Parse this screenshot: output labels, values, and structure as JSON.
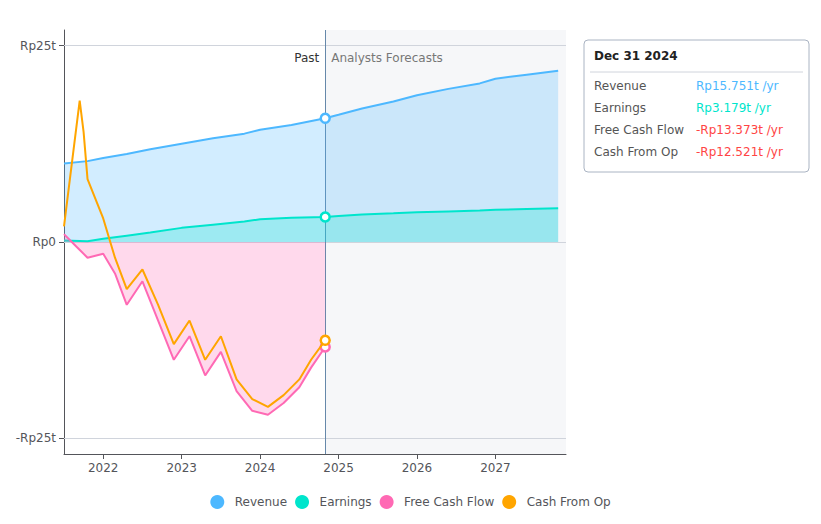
{
  "chart_data": {
    "type": "line",
    "xlim": [
      2021.5,
      2027.9
    ],
    "xticks": [
      2022,
      2023,
      2024,
      2025,
      2026,
      2027
    ],
    "ylim": [
      -27,
      27
    ],
    "yticks": [
      {
        "value": -25,
        "label": "-Rp25t"
      },
      {
        "value": 0,
        "label": "Rp0"
      },
      {
        "value": 25,
        "label": "Rp25t"
      }
    ],
    "grid": true,
    "legend": "bottom",
    "series": [
      {
        "name": "Revenue",
        "type": "area",
        "color": "#4db8ff",
        "x": [
          2021.5,
          2021.8,
          2022.0,
          2022.3,
          2022.6,
          2023.0,
          2023.4,
          2023.8,
          2024.0,
          2024.4,
          2024.83,
          2025.0,
          2025.3,
          2025.7,
          2026.0,
          2026.4,
          2026.8,
          2027.0,
          2027.4,
          2027.8
        ],
        "values": [
          10.0,
          10.3,
          10.7,
          11.2,
          11.8,
          12.5,
          13.2,
          13.8,
          14.3,
          14.9,
          15.751,
          16.2,
          17.0,
          17.9,
          18.7,
          19.5,
          20.2,
          20.8,
          21.3,
          21.8
        ]
      },
      {
        "name": "Earnings",
        "type": "area",
        "color": "#00e5cc",
        "x": [
          2021.5,
          2021.8,
          2022.0,
          2022.3,
          2022.6,
          2023.0,
          2023.4,
          2023.8,
          2024.0,
          2024.4,
          2024.83,
          2025.0,
          2025.3,
          2025.7,
          2026.0,
          2026.4,
          2026.8,
          2027.0,
          2027.4,
          2027.8
        ],
        "values": [
          0.2,
          0.1,
          0.4,
          0.8,
          1.2,
          1.8,
          2.2,
          2.6,
          2.9,
          3.1,
          3.179,
          3.3,
          3.5,
          3.65,
          3.8,
          3.9,
          4.0,
          4.1,
          4.2,
          4.3
        ]
      },
      {
        "name": "Free Cash Flow",
        "type": "area",
        "color": "#ff69b4",
        "x": [
          2021.5,
          2021.65,
          2021.8,
          2022.0,
          2022.15,
          2022.3,
          2022.5,
          2022.7,
          2022.9,
          2023.1,
          2023.3,
          2023.5,
          2023.7,
          2023.9,
          2024.1,
          2024.3,
          2024.5,
          2024.65,
          2024.83
        ],
        "values": [
          1.0,
          -0.5,
          -2.0,
          -1.5,
          -4.0,
          -8.0,
          -5.0,
          -10.0,
          -15.0,
          -12.0,
          -17.0,
          -14.0,
          -19.0,
          -21.5,
          -22.0,
          -20.5,
          -18.5,
          -16.0,
          -13.373
        ]
      },
      {
        "name": "Cash From Op",
        "type": "line",
        "color": "#ffa500",
        "x": [
          2021.5,
          2021.6,
          2021.7,
          2021.75,
          2021.8,
          2022.0,
          2022.15,
          2022.3,
          2022.5,
          2022.7,
          2022.9,
          2023.1,
          2023.3,
          2023.5,
          2023.7,
          2023.9,
          2024.1,
          2024.3,
          2024.5,
          2024.65,
          2024.83
        ],
        "values": [
          2.0,
          10.0,
          18.0,
          14.0,
          8.0,
          3.0,
          -2.0,
          -6.0,
          -3.5,
          -8.0,
          -13.0,
          -10.0,
          -15.0,
          -12.0,
          -17.5,
          -20.0,
          -21.0,
          -19.5,
          -17.5,
          -15.0,
          -12.521
        ]
      }
    ],
    "annotations": [
      {
        "text": "Past",
        "x": 2024.83
      },
      {
        "text": "Analysts Forecasts",
        "x": 2024.83
      }
    ],
    "tooltip": {
      "title": "Dec 31 2024",
      "rows": [
        {
          "label": "Revenue",
          "value": "Rp15.751t /yr",
          "color": "#4db8ff"
        },
        {
          "label": "Earnings",
          "value": "Rp3.179t /yr",
          "color": "#00e5cc"
        },
        {
          "label": "Free Cash Flow",
          "value": "-Rp13.373t /yr",
          "color": "#ff4444"
        },
        {
          "label": "Cash From Op",
          "value": "-Rp12.521t /yr",
          "color": "#ff4444"
        }
      ]
    }
  }
}
